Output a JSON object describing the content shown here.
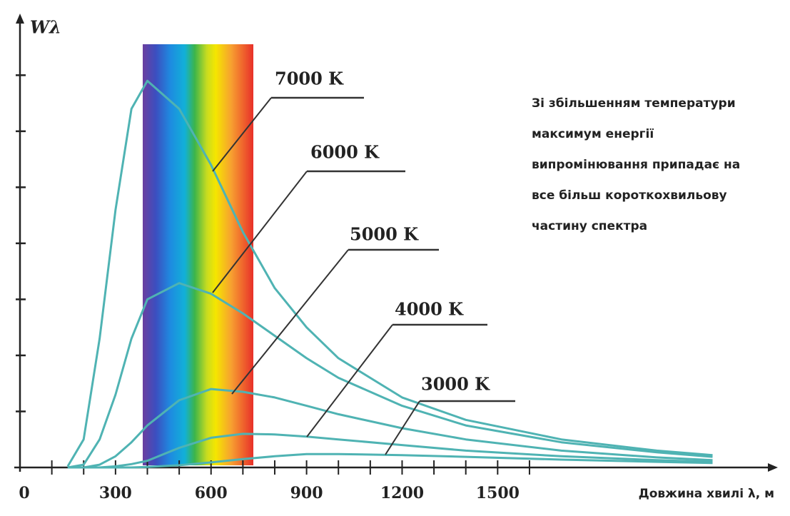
{
  "chart_data": {
    "type": "line",
    "ylabel": "Wλ",
    "xlabel": "Довжина хвилі λ, м",
    "annotation": [
      "Зі збільшенням температури",
      "максимум енергії",
      "випромінювання припадає на",
      "все більш короткохвильову",
      "частину спектра"
    ],
    "x": [
      150,
      200,
      250,
      300,
      350,
      400,
      500,
      600,
      700,
      800,
      900,
      1000,
      1200,
      1400,
      1700,
      2000,
      2175
    ],
    "series": [
      {
        "name": "7000 K",
        "color": "#4fb3b3",
        "values": [
          0.02,
          0.5,
          2.3,
          4.6,
          6.4,
          6.9,
          6.4,
          5.4,
          4.2,
          3.2,
          2.5,
          1.95,
          1.25,
          0.85,
          0.5,
          0.3,
          0.22
        ]
      },
      {
        "name": "6000 K",
        "color": "#4fb3b3",
        "values": [
          0,
          0.05,
          0.5,
          1.3,
          2.3,
          3.0,
          3.29,
          3.1,
          2.75,
          2.35,
          1.95,
          1.6,
          1.1,
          0.75,
          0.45,
          0.27,
          0.19
        ]
      },
      {
        "name": "5000 K",
        "color": "#4fb3b3",
        "values": [
          0,
          0,
          0.05,
          0.2,
          0.45,
          0.75,
          1.2,
          1.4,
          1.35,
          1.25,
          1.1,
          0.95,
          0.7,
          0.5,
          0.3,
          0.18,
          0.13
        ]
      },
      {
        "name": "4000 K",
        "color": "#4fb3b3",
        "values": [
          0,
          0,
          0,
          0.02,
          0.06,
          0.12,
          0.35,
          0.53,
          0.6,
          0.59,
          0.55,
          0.5,
          0.4,
          0.3,
          0.2,
          0.13,
          0.1
        ]
      },
      {
        "name": "3000 K",
        "color": "#4fb3b3",
        "values": [
          0,
          0,
          0,
          0,
          0,
          0.01,
          0.04,
          0.09,
          0.15,
          0.2,
          0.24,
          0.24,
          0.22,
          0.19,
          0.14,
          0.1,
          0.08
        ]
      }
    ],
    "xlim": [
      0,
      2380
    ],
    "ylim": [
      0,
      8.1
    ],
    "xticks": [
      0,
      300,
      600,
      900,
      1200,
      1500
    ],
    "xminor_ticks": [
      100,
      200,
      400,
      500,
      700,
      800,
      1000,
      1100,
      1300,
      1400,
      1600
    ],
    "yticks": [
      1,
      2,
      3,
      4,
      5,
      6,
      7
    ]
  }
}
